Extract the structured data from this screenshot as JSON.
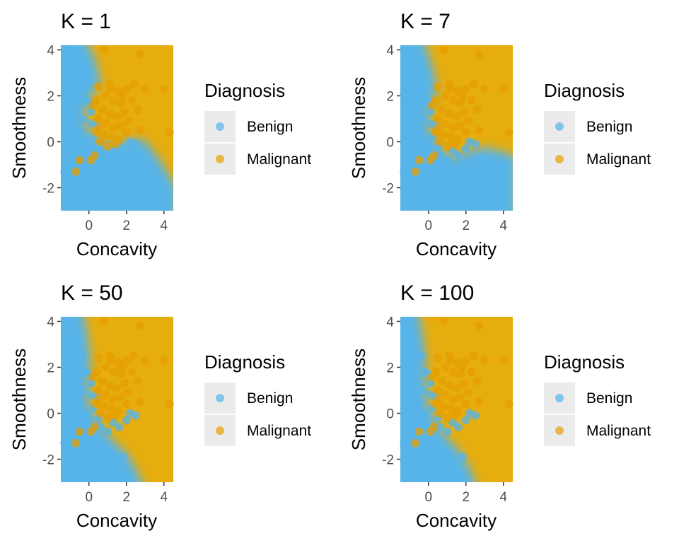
{
  "colors": {
    "benign": "#56B4E9",
    "malignant": "#E69F00",
    "tick": "#333333",
    "legend_key_bg": "#EBEBEB"
  },
  "chart_data": [
    {
      "type": "scatter",
      "title": "K =  1",
      "xlabel": "Concavity",
      "ylabel": "Smoothness",
      "xlim": [
        -1.5,
        4.5
      ],
      "ylim": [
        -3.0,
        4.2
      ],
      "xticks": [
        0,
        2,
        4
      ],
      "yticks": [
        -2,
        0,
        2,
        4
      ],
      "xtick_labels": [
        "0",
        "2",
        "4"
      ],
      "ytick_labels": [
        "-2",
        "0",
        "2",
        "4"
      ],
      "background": "decision-region",
      "grid": false,
      "legend": {
        "title": "Diagnosis",
        "entries": [
          "Benign",
          "Malignant"
        ],
        "position": "right"
      }
    },
    {
      "type": "scatter",
      "title": "K =  7",
      "xlabel": "Concavity",
      "ylabel": "Smoothness",
      "xlim": [
        -1.5,
        4.5
      ],
      "ylim": [
        -3.0,
        4.2
      ],
      "xticks": [
        0,
        2,
        4
      ],
      "yticks": [
        -2,
        0,
        2,
        4
      ],
      "xtick_labels": [
        "0",
        "2",
        "4"
      ],
      "ytick_labels": [
        "-2",
        "0",
        "2",
        "4"
      ],
      "background": "decision-region",
      "grid": false,
      "legend": {
        "title": "Diagnosis",
        "entries": [
          "Benign",
          "Malignant"
        ],
        "position": "right"
      }
    },
    {
      "type": "scatter",
      "title": "K =  50",
      "xlabel": "Concavity",
      "ylabel": "Smoothness",
      "xlim": [
        -1.5,
        4.5
      ],
      "ylim": [
        -3.0,
        4.2
      ],
      "xticks": [
        0,
        2,
        4
      ],
      "yticks": [
        -2,
        0,
        2,
        4
      ],
      "xtick_labels": [
        "0",
        "2",
        "4"
      ],
      "ytick_labels": [
        "-2",
        "0",
        "2",
        "4"
      ],
      "background": "decision-region",
      "grid": false,
      "legend": {
        "title": "Diagnosis",
        "entries": [
          "Benign",
          "Malignant"
        ],
        "position": "right"
      }
    },
    {
      "type": "scatter",
      "title": "K =  100",
      "xlabel": "Concavity",
      "ylabel": "Smoothness",
      "xlim": [
        -1.5,
        4.5
      ],
      "ylim": [
        -3.0,
        4.2
      ],
      "xticks": [
        0,
        2,
        4
      ],
      "yticks": [
        -2,
        0,
        2,
        4
      ],
      "xtick_labels": [
        "0",
        "2",
        "4"
      ],
      "ytick_labels": [
        "-2",
        "0",
        "2",
        "4"
      ],
      "background": "decision-region",
      "grid": false,
      "legend": {
        "title": "Diagnosis",
        "entries": [
          "Benign",
          "Malignant"
        ],
        "position": "right"
      }
    }
  ],
  "points": {
    "benign": [
      [
        -1.2,
        0.3
      ],
      [
        -0.9,
        1.3
      ],
      [
        -0.7,
        2.3
      ],
      [
        -0.4,
        2.5
      ],
      [
        -0.2,
        1.8
      ],
      [
        0.0,
        1.7
      ],
      [
        0.1,
        1.3
      ],
      [
        -0.6,
        0.5
      ],
      [
        -0.3,
        0.0
      ],
      [
        -1.0,
        -0.8
      ],
      [
        -0.7,
        -1.5
      ],
      [
        -0.4,
        -2.2
      ],
      [
        0.1,
        -1.9
      ],
      [
        0.3,
        -1.2
      ],
      [
        0.0,
        -0.6
      ],
      [
        0.4,
        0.7
      ],
      [
        -0.8,
        1.0
      ],
      [
        -0.5,
        -0.3
      ],
      [
        -0.9,
        -2.0
      ],
      [
        -0.2,
        -1.0
      ],
      [
        0.2,
        0.2
      ],
      [
        0.5,
        -0.2
      ],
      [
        1.0,
        -0.8
      ],
      [
        1.6,
        -0.6
      ],
      [
        2.0,
        -0.3
      ],
      [
        2.2,
        0.0
      ],
      [
        2.5,
        -0.1
      ],
      [
        1.8,
        -1.9
      ],
      [
        0.6,
        -0.6
      ],
      [
        1.3,
        -0.4
      ],
      [
        -1.1,
        1.8
      ],
      [
        -0.3,
        1.0
      ],
      [
        0.1,
        0.8
      ],
      [
        -0.6,
        -1.0
      ],
      [
        -1.3,
        -1.3
      ],
      [
        -0.1,
        -0.1
      ]
    ],
    "malignant": [
      [
        0.8,
        4.0
      ],
      [
        2.7,
        3.8
      ],
      [
        0.5,
        2.4
      ],
      [
        1.2,
        2.3
      ],
      [
        1.6,
        2.2
      ],
      [
        2.0,
        2.3
      ],
      [
        3.0,
        2.3
      ],
      [
        4.0,
        2.3
      ],
      [
        0.9,
        2.0
      ],
      [
        1.3,
        1.8
      ],
      [
        1.7,
        1.7
      ],
      [
        2.3,
        1.8
      ],
      [
        0.2,
        1.6
      ],
      [
        0.7,
        1.4
      ],
      [
        1.1,
        1.2
      ],
      [
        1.5,
        1.1
      ],
      [
        1.9,
        1.3
      ],
      [
        2.6,
        1.4
      ],
      [
        0.5,
        1.0
      ],
      [
        0.9,
        0.8
      ],
      [
        1.3,
        0.6
      ],
      [
        1.7,
        0.7
      ],
      [
        2.1,
        0.9
      ],
      [
        2.7,
        0.5
      ],
      [
        0.4,
        0.4
      ],
      [
        0.8,
        0.3
      ],
      [
        1.2,
        0.2
      ],
      [
        1.6,
        0.1
      ],
      [
        2.0,
        0.4
      ],
      [
        0.6,
        0.0
      ],
      [
        1.0,
        -0.2
      ],
      [
        1.4,
        -0.1
      ],
      [
        0.3,
        -0.6
      ],
      [
        0.1,
        -0.8
      ],
      [
        -0.5,
        -0.8
      ],
      [
        -0.7,
        -1.3
      ],
      [
        0.5,
        0.6
      ],
      [
        4.3,
        0.4
      ],
      [
        1.1,
        2.5
      ],
      [
        2.4,
        2.5
      ],
      [
        0.4,
        1.8
      ],
      [
        1.8,
        2.0
      ]
    ]
  }
}
